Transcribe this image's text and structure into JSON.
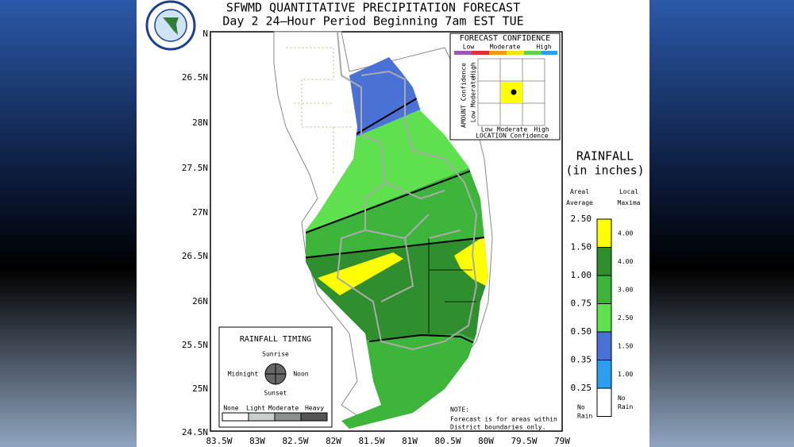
{
  "header": {
    "title": "SFWMD QUANTITATIVE PRECIPITATION FORECAST",
    "subtitle": "Day 2 24–Hour Period Beginning 7am EST TUE"
  },
  "map": {
    "lat_labels": [
      "N",
      "26.5N",
      "28N",
      "27.5N",
      "27N",
      "26.5N",
      "26N",
      "25.5N",
      "25N",
      "24.5N"
    ],
    "lon_labels": [
      "83.5W",
      "83W",
      "82.5W",
      "82W",
      "81.5W",
      "81W",
      "80.5W",
      "80W",
      "79.5W",
      "79W"
    ]
  },
  "confidence": {
    "title": "FORECAST CONFIDENCE",
    "scale": [
      "Low",
      "Moderate",
      "High"
    ],
    "amount_title": "AMOUNT Confidence",
    "amount_levels": [
      "High",
      "Moderate",
      "Low"
    ],
    "location_levels": [
      "Low",
      "Moderate",
      "High"
    ],
    "location_title": "LOCATION Confidence"
  },
  "rainfall_legend": {
    "title": "RAINFALL",
    "subtitle": "(in inches)",
    "areal_heading": "Areal Average",
    "local_heading": "Local Maxima",
    "items": [
      {
        "areal": "2.50",
        "local": "4.00",
        "color": "#ffff00"
      },
      {
        "areal": "1.50",
        "local": "4.00",
        "color": "#2f8f2f"
      },
      {
        "areal": "1.00",
        "local": "3.00",
        "color": "#3db53a"
      },
      {
        "areal": "0.75",
        "local": "2.50",
        "color": "#5fe04f"
      },
      {
        "areal": "0.50",
        "local": "1.50",
        "color": "#4a72d6"
      },
      {
        "areal": "0.35",
        "local": "1.00",
        "color": "#2a9ff0"
      },
      {
        "areal": "0.25",
        "local": "No Rain",
        "color": "#ffffff"
      }
    ],
    "bottom_label": "No Rain"
  },
  "timing": {
    "title": "RAINFALL TIMING",
    "sunrise": "Sunrise",
    "midnight": "Midnight",
    "noon": "Noon",
    "sunset": "Sunset",
    "intensity": [
      "None",
      "Light",
      "Moderate",
      "Heavy"
    ]
  },
  "note": {
    "label": "NOTE:",
    "lines": [
      "Forecast is for areas within",
      "District boundaries only."
    ]
  }
}
